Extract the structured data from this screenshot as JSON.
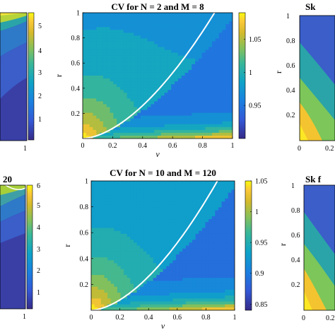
{
  "chart_data": [
    {
      "type": "heatmap",
      "id": "cv-n2-m8",
      "title": "CV for N = 2 and M = 8",
      "xlabel": "ν",
      "ylabel": "r",
      "xlim": [
        0,
        1
      ],
      "ylim": [
        0,
        1
      ],
      "xticks": [
        "0",
        "0.2",
        "0.4",
        "0.6",
        "0.8",
        "1"
      ],
      "yticks": [
        "0.2",
        "0.4",
        "0.6",
        "0.8",
        "1"
      ],
      "colorbar": {
        "min": 0.9,
        "max": 1.09,
        "ticks": [
          "0.95",
          "1",
          "1.05"
        ],
        "tick_values": [
          0.95,
          1.0,
          1.05
        ]
      },
      "contour_levels": [
        0.92,
        0.94,
        0.96,
        0.98,
        1.0,
        1.02,
        1.04,
        1.06,
        1.08
      ],
      "highlight_contour": "white"
    },
    {
      "type": "heatmap",
      "id": "cv-n10-m120",
      "title": "CV for N = 10 and M = 120",
      "xlabel": "ν",
      "ylabel": "r",
      "xlim": [
        0,
        1
      ],
      "ylim": [
        0,
        1
      ],
      "xticks": [
        "0",
        "0.2",
        "0.4",
        "0.6",
        "0.8",
        "1"
      ],
      "yticks": [
        "0.2",
        "0.4",
        "0.6",
        "0.8",
        "1"
      ],
      "colorbar": {
        "min": 0.84,
        "max": 1.05,
        "ticks": [
          "0.85",
          "0.9",
          "0.95",
          "1",
          "1.05"
        ],
        "tick_values": [
          0.85,
          0.9,
          0.95,
          1.0,
          1.05
        ]
      },
      "contour_levels": [
        0.86,
        0.88,
        0.9,
        0.92,
        0.94,
        0.96,
        0.98,
        1.0,
        1.02,
        1.04
      ],
      "highlight_contour": "white"
    }
  ],
  "left_partial": {
    "top": {
      "colorbar_ticks": [
        "5",
        "4",
        "3",
        "2",
        "1"
      ],
      "x_tick": "1"
    },
    "bottom": {
      "title_fragment": "20",
      "colorbar_ticks": [
        "6",
        "5",
        "4",
        "3",
        "2",
        "1"
      ],
      "x_tick": "1"
    }
  },
  "right_partial": {
    "top": {
      "title_fragment": "Sk",
      "ylabel": "r",
      "yticks": [
        "1",
        "0.8",
        "0.6",
        "0.4",
        "0.2"
      ],
      "xticks": [
        "0",
        "0.2"
      ]
    },
    "bottom": {
      "title_fragment": "Sk f",
      "ylabel": "r",
      "yticks": [
        "1",
        "0.8",
        "0.6",
        "0.4",
        "0.2"
      ],
      "xticks": [
        "0",
        "0.2"
      ]
    }
  }
}
